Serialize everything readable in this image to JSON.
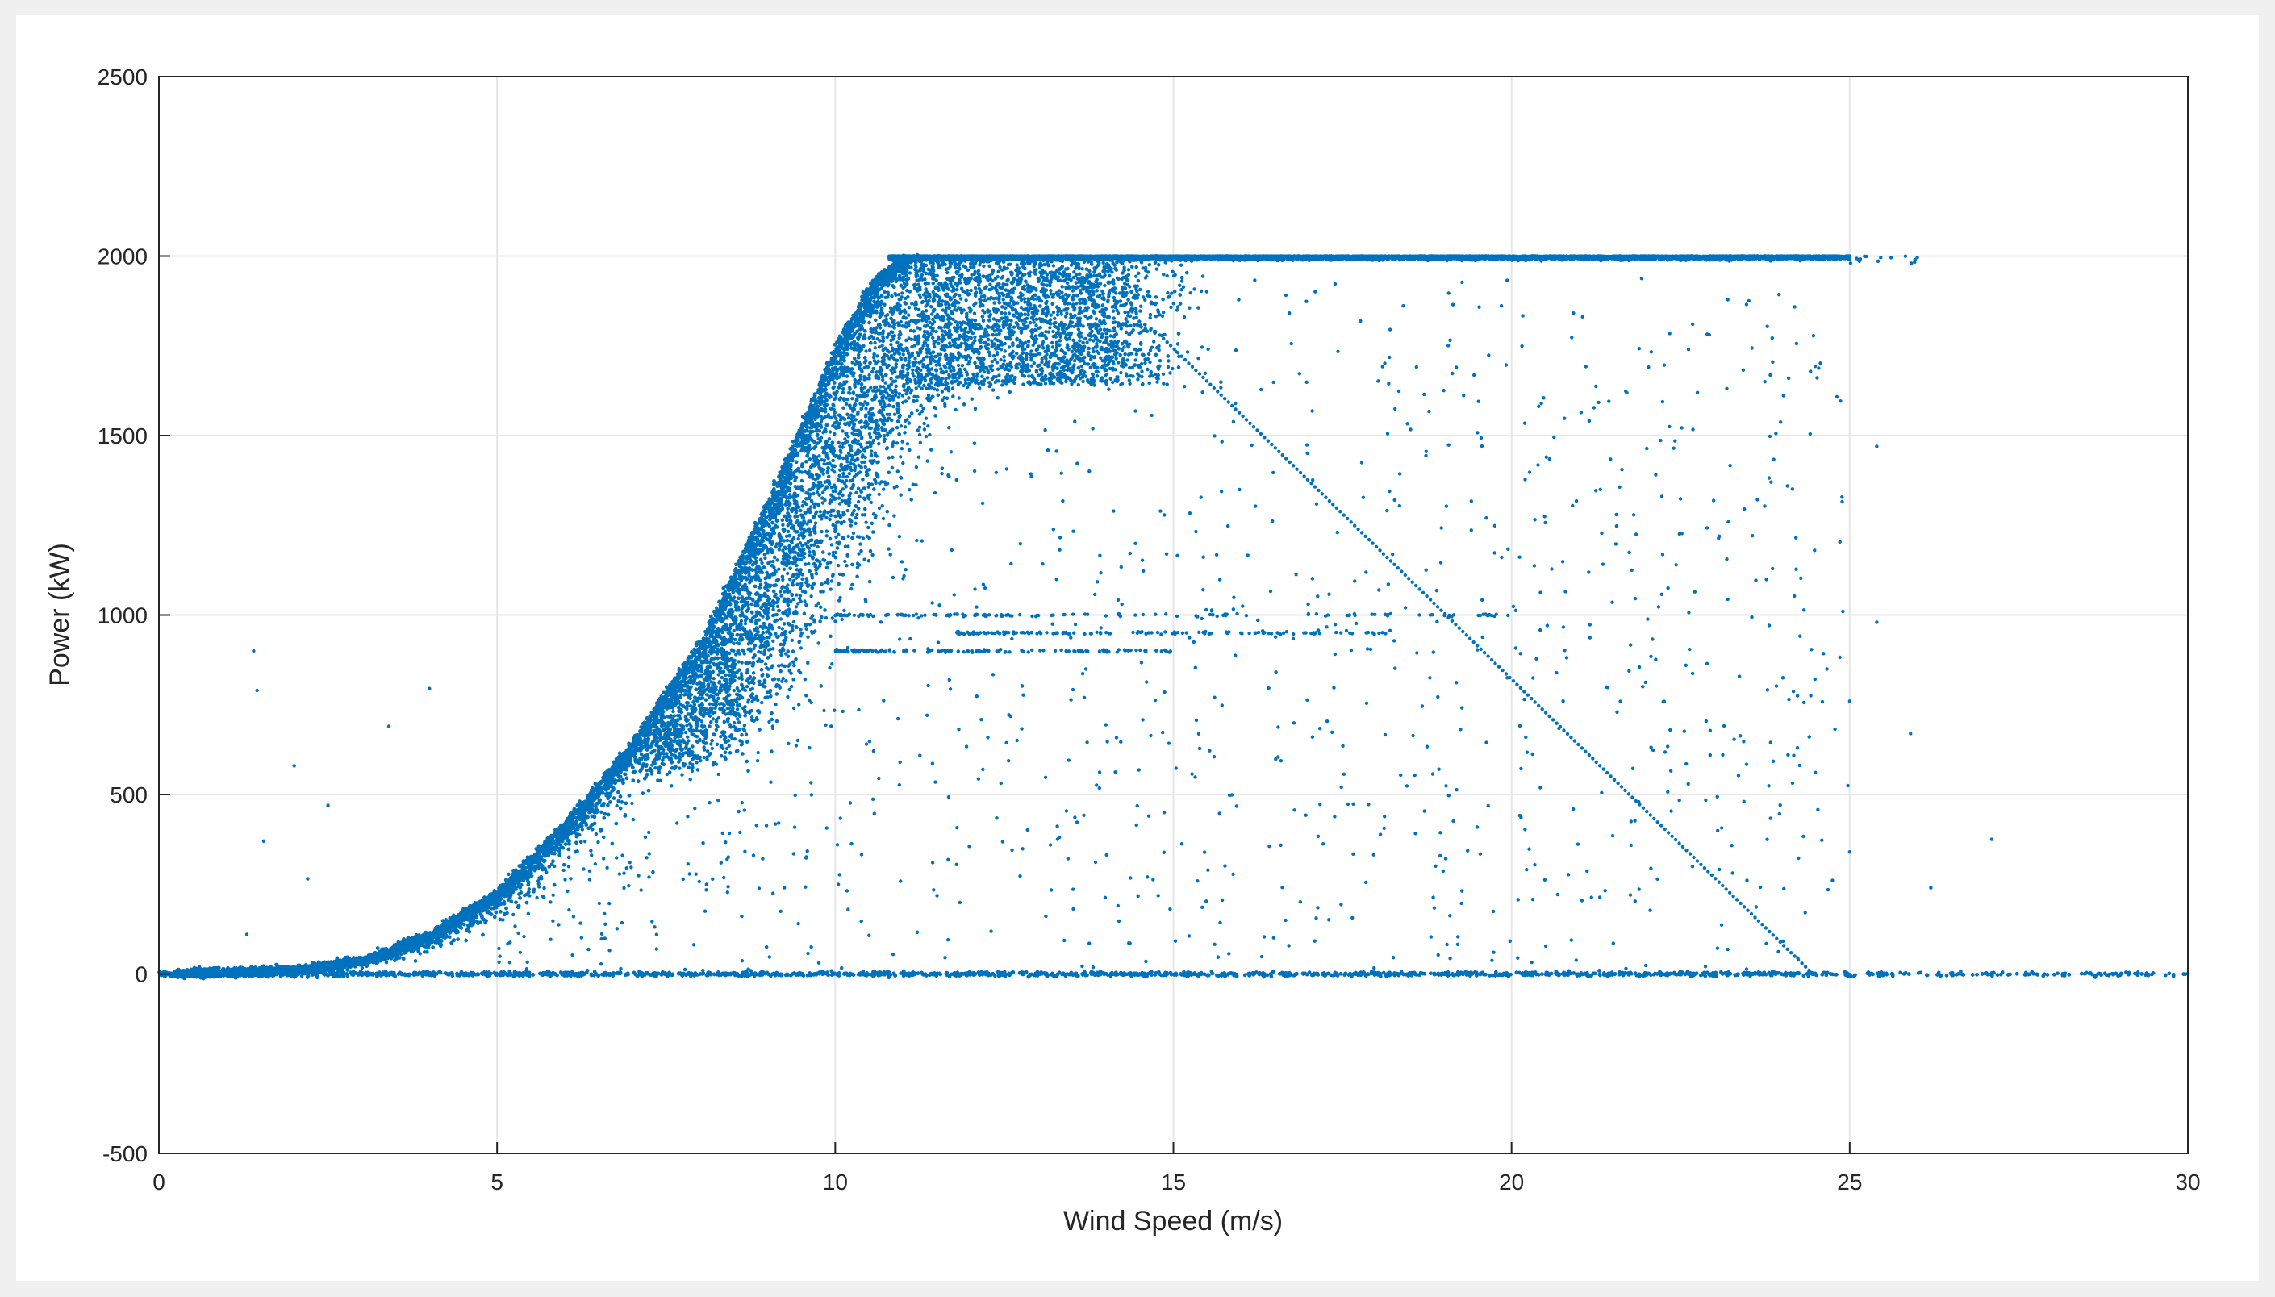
{
  "chart_data": {
    "type": "scatter",
    "title": "",
    "xlabel": "Wind Speed (m/s)",
    "ylabel": "Power (kW)",
    "xlim": [
      0,
      30
    ],
    "ylim": [
      -500,
      2500
    ],
    "xticks": [
      0,
      5,
      10,
      15,
      20,
      25,
      30
    ],
    "yticks": [
      -500,
      0,
      500,
      1000,
      1500,
      2000,
      2500
    ],
    "grid": true,
    "legend": "none",
    "marker_color": "#0072BD",
    "background_color": "#f0f0f0",
    "series": [
      {
        "rated_power": 2000,
        "power_curve": {
          "x": [
            0,
            2,
            3,
            4,
            5,
            6,
            7,
            8,
            9,
            10,
            10.5,
            11,
            12,
            24.5
          ],
          "y": [
            0,
            10,
            40,
            110,
            230,
            420,
            650,
            930,
            1320,
            1750,
            1920,
            2000,
            2000,
            2000
          ]
        },
        "derating_line": {
          "x": [
            14.8,
            24.4
          ],
          "y": [
            1780,
            10
          ]
        },
        "x_range": [
          0,
          30
        ],
        "y_range": [
          -40,
          2010
        ]
      }
    ]
  }
}
